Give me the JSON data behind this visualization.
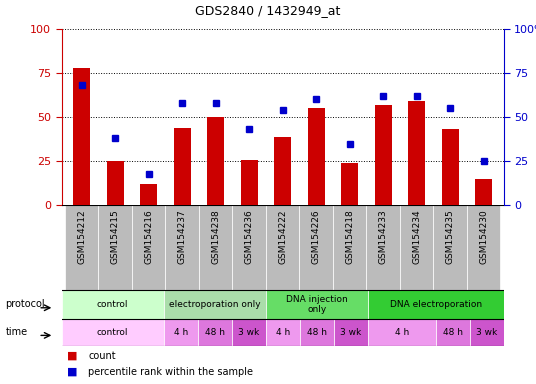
{
  "title": "GDS2840 / 1432949_at",
  "samples": [
    "GSM154212",
    "GSM154215",
    "GSM154216",
    "GSM154237",
    "GSM154238",
    "GSM154236",
    "GSM154222",
    "GSM154226",
    "GSM154218",
    "GSM154233",
    "GSM154234",
    "GSM154235",
    "GSM154230"
  ],
  "bar_values": [
    78,
    25,
    12,
    44,
    50,
    26,
    39,
    55,
    24,
    57,
    59,
    43,
    15
  ],
  "dot_values": [
    68,
    38,
    18,
    58,
    58,
    43,
    54,
    60,
    35,
    62,
    62,
    55,
    25
  ],
  "bar_color": "#cc0000",
  "dot_color": "#0000cc",
  "ylim": [
    0,
    100
  ],
  "yticks": [
    0,
    25,
    50,
    75,
    100
  ],
  "protocol_groups": [
    {
      "label": "control",
      "start": 0,
      "end": 3,
      "color": "#ccffcc"
    },
    {
      "label": "electroporation only",
      "start": 3,
      "end": 6,
      "color": "#aaddaa"
    },
    {
      "label": "DNA injection\nonly",
      "start": 6,
      "end": 9,
      "color": "#66dd66"
    },
    {
      "label": "DNA electroporation",
      "start": 9,
      "end": 13,
      "color": "#33cc33"
    }
  ],
  "time_groups": [
    {
      "label": "control",
      "start": 0,
      "end": 3,
      "color": "#ffccff"
    },
    {
      "label": "4 h",
      "start": 3,
      "end": 4,
      "color": "#ee99ee"
    },
    {
      "label": "48 h",
      "start": 4,
      "end": 5,
      "color": "#dd77dd"
    },
    {
      "label": "3 wk",
      "start": 5,
      "end": 6,
      "color": "#cc55cc"
    },
    {
      "label": "4 h",
      "start": 6,
      "end": 7,
      "color": "#ee99ee"
    },
    {
      "label": "48 h",
      "start": 7,
      "end": 8,
      "color": "#dd77dd"
    },
    {
      "label": "3 wk",
      "start": 8,
      "end": 9,
      "color": "#cc55cc"
    },
    {
      "label": "4 h",
      "start": 9,
      "end": 11,
      "color": "#ee99ee"
    },
    {
      "label": "48 h",
      "start": 11,
      "end": 12,
      "color": "#dd77dd"
    },
    {
      "label": "3 wk",
      "start": 12,
      "end": 13,
      "color": "#cc55cc"
    }
  ],
  "bg_color": "#ffffff",
  "tick_label_bg": "#bbbbbb"
}
